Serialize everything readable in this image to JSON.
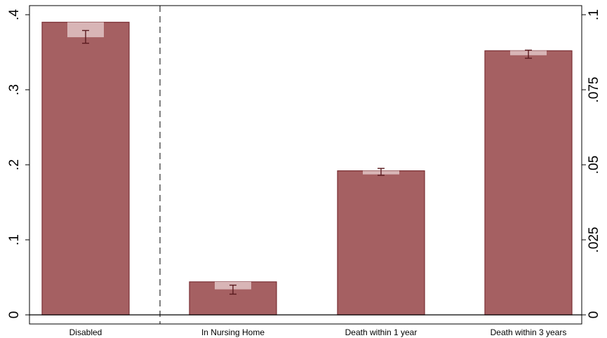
{
  "chart_data": {
    "type": "bar",
    "title": "",
    "xlabel": "",
    "ylabel": "",
    "categories": [
      "Disabled",
      "In Nursing Home",
      "Death within 1 year",
      "Death within 3 years"
    ],
    "axes": {
      "left": {
        "ylim": [
          0,
          0.4
        ],
        "ticks": [
          0,
          0.1,
          0.2,
          0.3,
          0.4
        ],
        "tick_labels": [
          "0",
          ".1",
          ".2",
          ".3",
          ".4"
        ],
        "used_by": [
          "Disabled"
        ]
      },
      "right": {
        "ylim": [
          0,
          0.1
        ],
        "ticks": [
          0,
          0.025,
          0.05,
          0.075,
          0.1
        ],
        "tick_labels": [
          "0",
          ".025",
          ".05",
          ".075",
          ".1"
        ],
        "used_by": [
          "In Nursing Home",
          "Death within 1 year",
          "Death within 3 years"
        ]
      }
    },
    "series": [
      {
        "values": [
          0.39,
          0.011,
          0.048,
          0.088
        ],
        "axis": [
          "left",
          "right",
          "right",
          "right"
        ],
        "ci_low": [
          0.362,
          0.0069,
          0.0465,
          0.0855
        ],
        "ci_high": [
          0.379,
          0.0099,
          0.0488,
          0.0882
        ],
        "overlay_low": [
          0.37,
          0.0085,
          0.0468,
          0.0865
        ],
        "overlay_high": [
          0.39,
          0.011,
          0.048,
          0.088
        ]
      }
    ],
    "separator_after": "Disabled",
    "grid": false,
    "legend": "none",
    "colors": {
      "bar": "#A56062",
      "bar_edge": "#7A2E33",
      "overlay": "#D8B5B6",
      "errorbar": "#5A1A1F",
      "axis": "#000000"
    }
  }
}
